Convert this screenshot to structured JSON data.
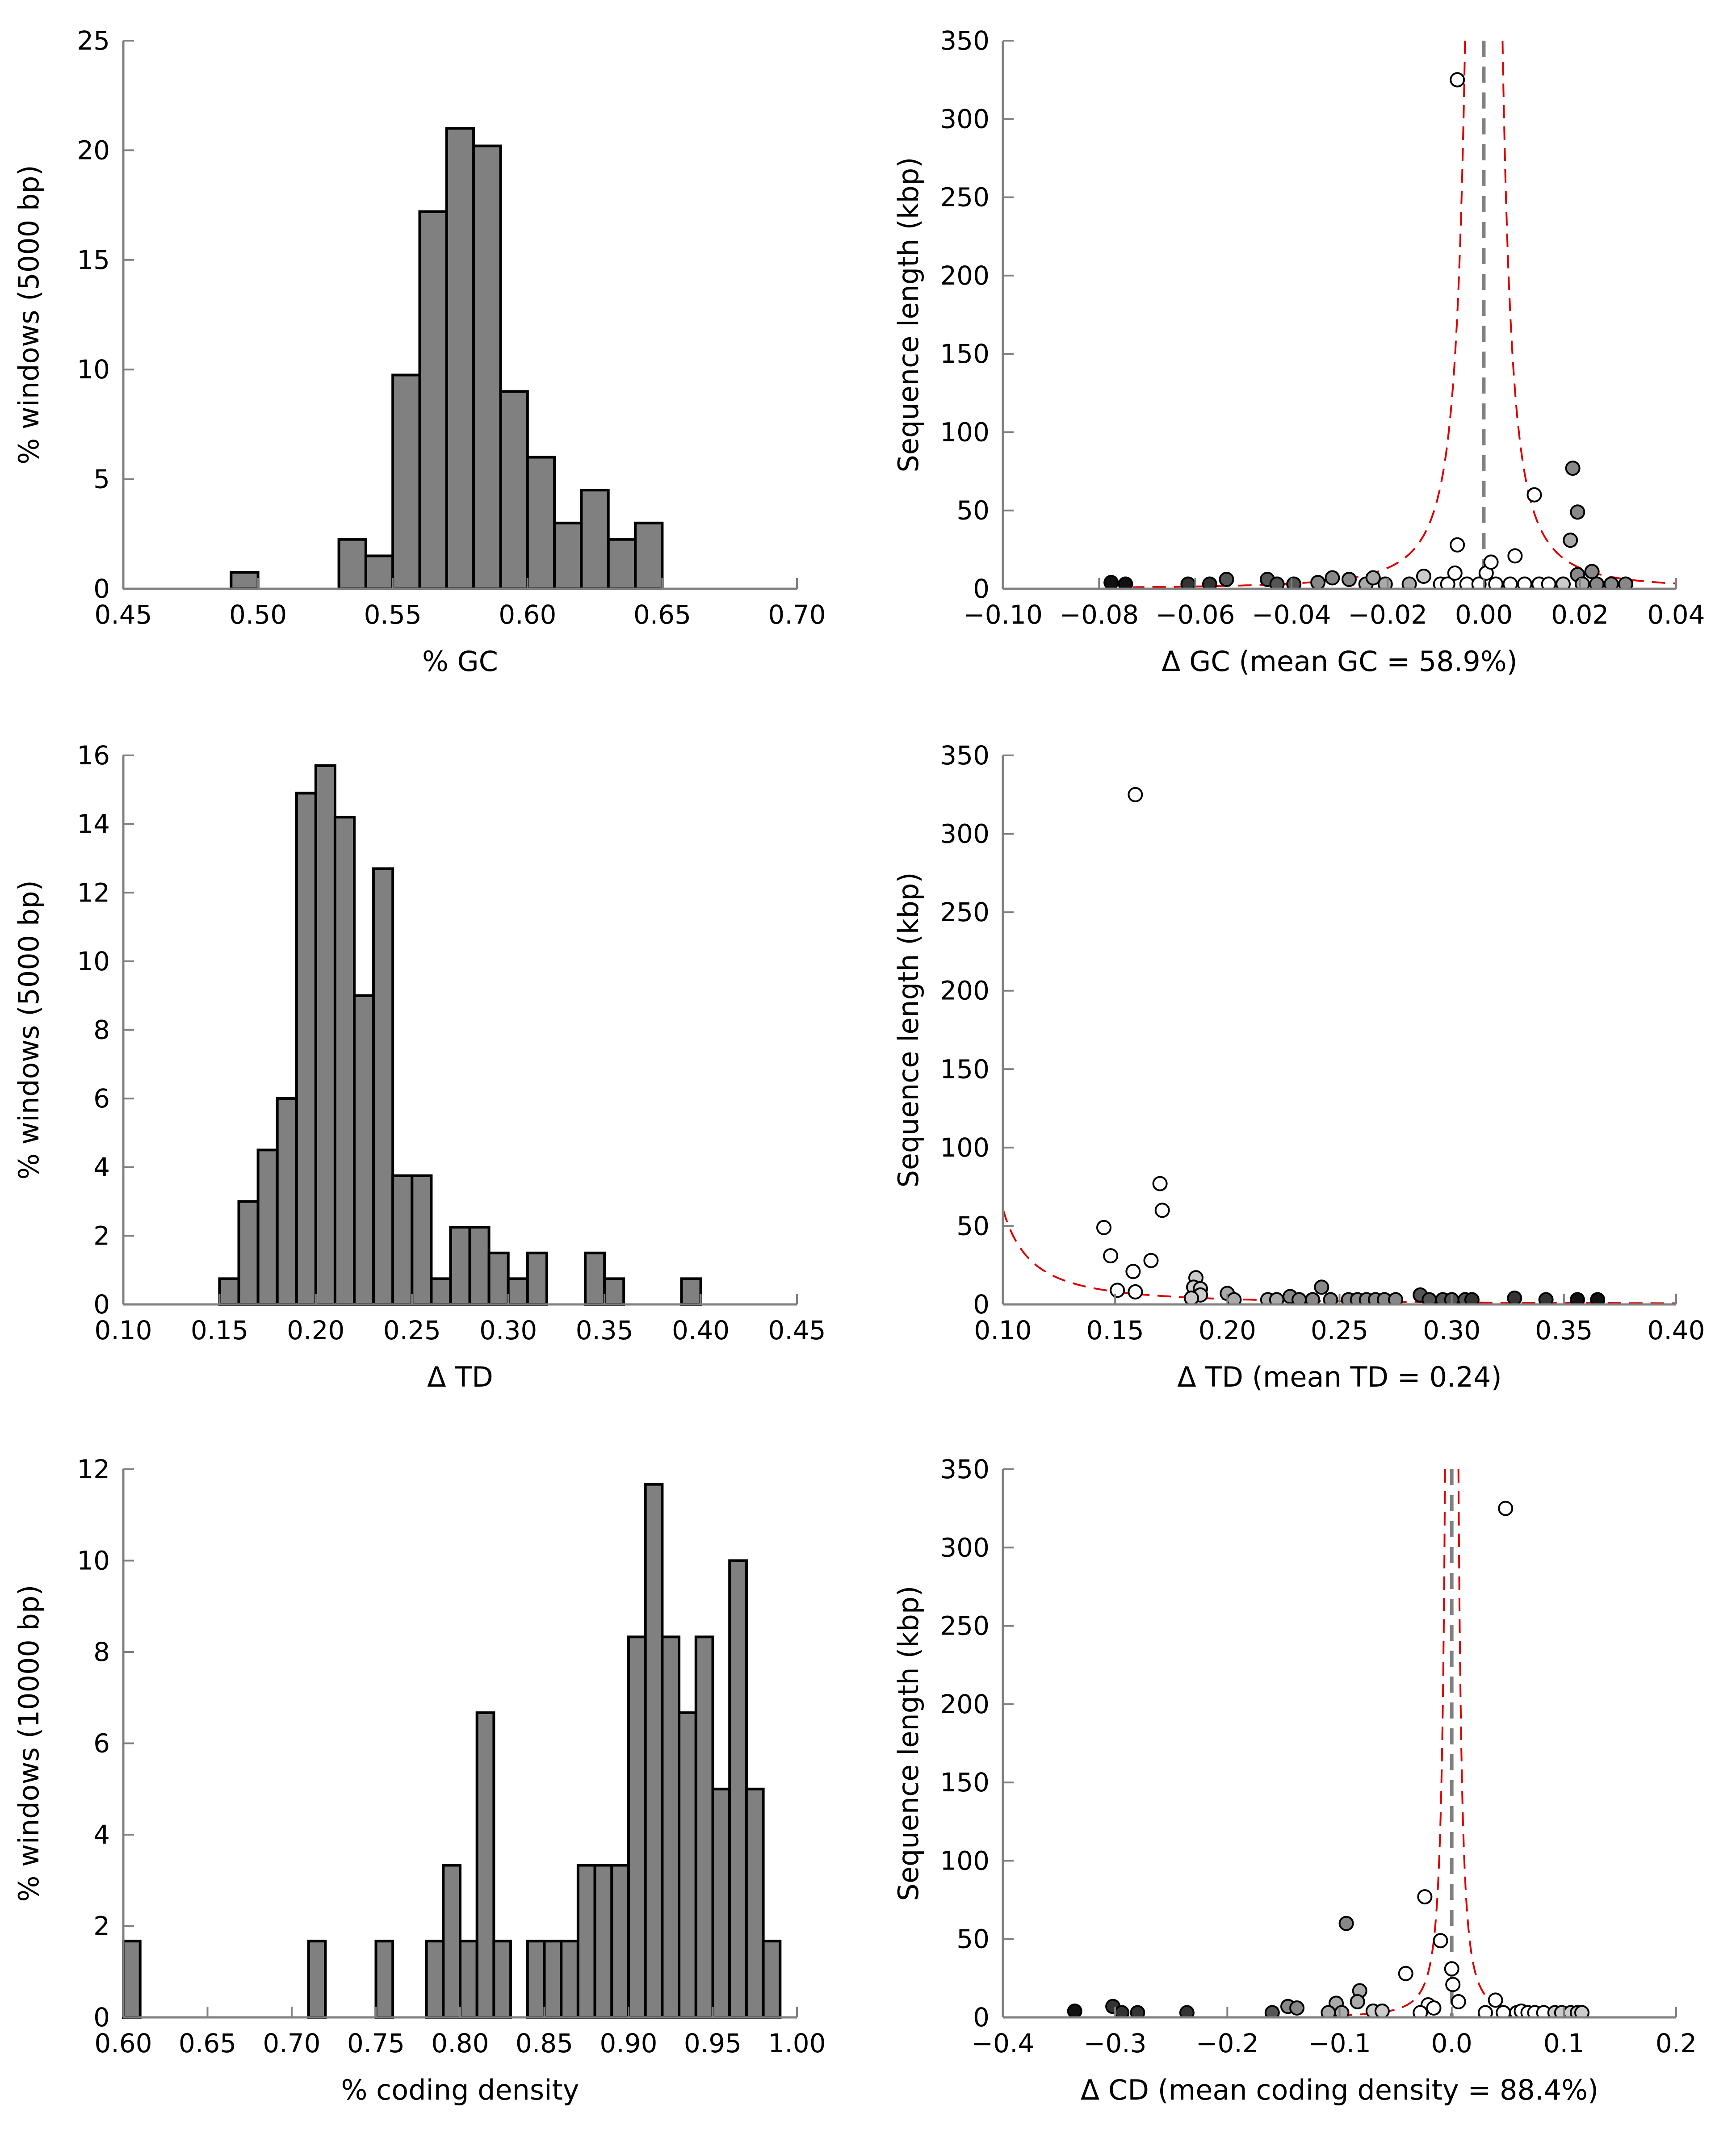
{
  "chart_data": [
    {
      "id": "gc-hist",
      "type": "bar",
      "ylabel": "% windows (5000 bp)",
      "xlabel": "% GC",
      "xlim": [
        0.45,
        0.7
      ],
      "ylim": [
        0,
        25
      ],
      "xticks": [
        0.45,
        0.5,
        0.55,
        0.6,
        0.65,
        0.7
      ],
      "xtick_labels": [
        "0.45",
        "0.50",
        "0.55",
        "0.60",
        "0.65",
        "0.70"
      ],
      "yticks": [
        0,
        5,
        10,
        15,
        20,
        25
      ],
      "ytick_labels": [
        "0",
        "5",
        "10",
        "15",
        "20",
        "25"
      ],
      "bin_width": 0.01,
      "bins": [
        {
          "x": 0.49,
          "value": 0.75
        },
        {
          "x": 0.53,
          "value": 2.25
        },
        {
          "x": 0.54,
          "value": 1.5
        },
        {
          "x": 0.55,
          "value": 9.75
        },
        {
          "x": 0.56,
          "value": 17.2
        },
        {
          "x": 0.57,
          "value": 21.0
        },
        {
          "x": 0.58,
          "value": 20.2
        },
        {
          "x": 0.59,
          "value": 9.0
        },
        {
          "x": 0.6,
          "value": 6.0
        },
        {
          "x": 0.61,
          "value": 3.0
        },
        {
          "x": 0.62,
          "value": 4.5
        },
        {
          "x": 0.63,
          "value": 2.25
        },
        {
          "x": 0.64,
          "value": 3.0
        }
      ],
      "bar_color": "#808080"
    },
    {
      "id": "gc-scatter",
      "type": "scatter",
      "ylabel": "Sequence length (kbp)",
      "xlabel": "Δ GC (mean GC = 58.9%)",
      "xlim": [
        -0.1,
        0.04
      ],
      "ylim": [
        0,
        350
      ],
      "xticks": [
        -0.1,
        -0.08,
        -0.06,
        -0.04,
        -0.02,
        0.0,
        0.02,
        0.04
      ],
      "xtick_labels": [
        "−0.10",
        "−0.08",
        "−0.06",
        "−0.04",
        "−0.02",
        "0.00",
        "0.02",
        "0.04"
      ],
      "yticks": [
        0,
        50,
        100,
        150,
        200,
        250,
        300,
        350
      ],
      "ytick_labels": [
        "0",
        "50",
        "100",
        "150",
        "200",
        "250",
        "300",
        "350"
      ],
      "vline": 0.0,
      "envelope_k": 0.0195,
      "envelope_center": 0.0,
      "points": [
        {
          "x": -0.0055,
          "y": 325,
          "fill": "#ffffff"
        },
        {
          "x": -0.0775,
          "y": 4,
          "fill": "#111111"
        },
        {
          "x": -0.0745,
          "y": 3,
          "fill": "#111111"
        },
        {
          "x": -0.0615,
          "y": 3,
          "fill": "#333333"
        },
        {
          "x": -0.057,
          "y": 3,
          "fill": "#333333"
        },
        {
          "x": -0.0535,
          "y": 6,
          "fill": "#555555"
        },
        {
          "x": -0.045,
          "y": 6,
          "fill": "#555555"
        },
        {
          "x": -0.043,
          "y": 3,
          "fill": "#555555"
        },
        {
          "x": -0.0395,
          "y": 3,
          "fill": "#555555"
        },
        {
          "x": -0.0345,
          "y": 4,
          "fill": "#888888"
        },
        {
          "x": -0.0315,
          "y": 7,
          "fill": "#888888"
        },
        {
          "x": -0.028,
          "y": 6,
          "fill": "#888888"
        },
        {
          "x": -0.0245,
          "y": 3,
          "fill": "#aaaaaa"
        },
        {
          "x": -0.023,
          "y": 7,
          "fill": "#aaaaaa"
        },
        {
          "x": -0.0205,
          "y": 3,
          "fill": "#aaaaaa"
        },
        {
          "x": -0.0155,
          "y": 3,
          "fill": "#aaaaaa"
        },
        {
          "x": -0.0125,
          "y": 8,
          "fill": "#cccccc"
        },
        {
          "x": -0.009,
          "y": 3,
          "fill": "#ffffff"
        },
        {
          "x": -0.0075,
          "y": 3,
          "fill": "#ffffff"
        },
        {
          "x": -0.006,
          "y": 10,
          "fill": "#ffffff"
        },
        {
          "x": -0.0055,
          "y": 28,
          "fill": "#ffffff"
        },
        {
          "x": -0.0035,
          "y": 3,
          "fill": "#ffffff"
        },
        {
          "x": -0.001,
          "y": 3,
          "fill": "#ffffff"
        },
        {
          "x": 0.0005,
          "y": 10,
          "fill": "#ffffff"
        },
        {
          "x": 0.0015,
          "y": 17,
          "fill": "#ffffff"
        },
        {
          "x": 0.0025,
          "y": 3,
          "fill": "#ffffff"
        },
        {
          "x": 0.0055,
          "y": 3,
          "fill": "#ffffff"
        },
        {
          "x": 0.0065,
          "y": 21,
          "fill": "#ffffff"
        },
        {
          "x": 0.0085,
          "y": 3,
          "fill": "#ffffff"
        },
        {
          "x": 0.0105,
          "y": 60,
          "fill": "#ffffff"
        },
        {
          "x": 0.0115,
          "y": 3,
          "fill": "#ffffff"
        },
        {
          "x": 0.0135,
          "y": 3,
          "fill": "#ffffff"
        },
        {
          "x": 0.0165,
          "y": 3,
          "fill": "#cccccc"
        },
        {
          "x": 0.018,
          "y": 31,
          "fill": "#aaaaaa"
        },
        {
          "x": 0.0185,
          "y": 77,
          "fill": "#888888"
        },
        {
          "x": 0.0195,
          "y": 49,
          "fill": "#888888"
        },
        {
          "x": 0.0195,
          "y": 9,
          "fill": "#888888"
        },
        {
          "x": 0.0205,
          "y": 3,
          "fill": "#aaaaaa"
        },
        {
          "x": 0.0225,
          "y": 11,
          "fill": "#888888"
        },
        {
          "x": 0.0235,
          "y": 3,
          "fill": "#888888"
        },
        {
          "x": 0.0265,
          "y": 3,
          "fill": "#888888"
        },
        {
          "x": 0.0295,
          "y": 3,
          "fill": "#888888"
        }
      ]
    },
    {
      "id": "td-hist",
      "type": "bar",
      "ylabel": "% windows (5000 bp)",
      "xlabel": "Δ TD",
      "xlim": [
        0.1,
        0.45
      ],
      "ylim": [
        0,
        16
      ],
      "xticks": [
        0.1,
        0.15,
        0.2,
        0.25,
        0.3,
        0.35,
        0.4,
        0.45
      ],
      "xtick_labels": [
        "0.10",
        "0.15",
        "0.20",
        "0.25",
        "0.30",
        "0.35",
        "0.40",
        "0.45"
      ],
      "yticks": [
        0,
        2,
        4,
        6,
        8,
        10,
        12,
        14,
        16
      ],
      "ytick_labels": [
        "0",
        "2",
        "4",
        "6",
        "8",
        "10",
        "12",
        "14",
        "16"
      ],
      "bin_width": 0.01,
      "bins": [
        {
          "x": 0.15,
          "value": 0.75
        },
        {
          "x": 0.16,
          "value": 3.0
        },
        {
          "x": 0.17,
          "value": 4.5
        },
        {
          "x": 0.18,
          "value": 6.0
        },
        {
          "x": 0.19,
          "value": 14.9
        },
        {
          "x": 0.2,
          "value": 15.7
        },
        {
          "x": 0.21,
          "value": 14.2
        },
        {
          "x": 0.22,
          "value": 9.0
        },
        {
          "x": 0.23,
          "value": 12.7
        },
        {
          "x": 0.24,
          "value": 3.75
        },
        {
          "x": 0.25,
          "value": 3.75
        },
        {
          "x": 0.26,
          "value": 0.75
        },
        {
          "x": 0.27,
          "value": 2.25
        },
        {
          "x": 0.28,
          "value": 2.25
        },
        {
          "x": 0.29,
          "value": 1.5
        },
        {
          "x": 0.3,
          "value": 0.75
        },
        {
          "x": 0.31,
          "value": 1.5
        },
        {
          "x": 0.34,
          "value": 1.5
        },
        {
          "x": 0.35,
          "value": 0.75
        },
        {
          "x": 0.39,
          "value": 0.75
        }
      ],
      "bar_color": "#808080"
    },
    {
      "id": "td-scatter",
      "type": "scatter",
      "ylabel": "Sequence length (kbp)",
      "xlabel": "Δ TD (mean TD = 0.24)",
      "xlim": [
        0.1,
        0.4
      ],
      "ylim": [
        0,
        350
      ],
      "xticks": [
        0.1,
        0.15,
        0.2,
        0.25,
        0.3,
        0.35,
        0.4
      ],
      "xtick_labels": [
        "0.10",
        "0.15",
        "0.20",
        "0.25",
        "0.30",
        "0.35",
        "0.40"
      ],
      "yticks": [
        0,
        50,
        100,
        150,
        200,
        250,
        300,
        350
      ],
      "ytick_labels": [
        "0",
        "50",
        "100",
        "150",
        "200",
        "250",
        "300",
        "350"
      ],
      "vline": null,
      "envelope_k": 2.9,
      "envelope_offset": 0.08,
      "points": [
        {
          "x": 0.159,
          "y": 325,
          "fill": "#ffffff"
        },
        {
          "x": 0.17,
          "y": 77,
          "fill": "#ffffff"
        },
        {
          "x": 0.171,
          "y": 60,
          "fill": "#ffffff"
        },
        {
          "x": 0.145,
          "y": 49,
          "fill": "#ffffff"
        },
        {
          "x": 0.148,
          "y": 31,
          "fill": "#ffffff"
        },
        {
          "x": 0.166,
          "y": 28,
          "fill": "#ffffff"
        },
        {
          "x": 0.158,
          "y": 21,
          "fill": "#ffffff"
        },
        {
          "x": 0.151,
          "y": 9,
          "fill": "#ffffff"
        },
        {
          "x": 0.159,
          "y": 8,
          "fill": "#ffffff"
        },
        {
          "x": 0.186,
          "y": 17,
          "fill": "#cccccc"
        },
        {
          "x": 0.185,
          "y": 11,
          "fill": "#cccccc"
        },
        {
          "x": 0.188,
          "y": 10,
          "fill": "#cccccc"
        },
        {
          "x": 0.188,
          "y": 6,
          "fill": "#cccccc"
        },
        {
          "x": 0.184,
          "y": 4,
          "fill": "#cccccc"
        },
        {
          "x": 0.2,
          "y": 7,
          "fill": "#aaaaaa"
        },
        {
          "x": 0.203,
          "y": 3,
          "fill": "#aaaaaa"
        },
        {
          "x": 0.218,
          "y": 3,
          "fill": "#aaaaaa"
        },
        {
          "x": 0.222,
          "y": 3,
          "fill": "#aaaaaa"
        },
        {
          "x": 0.228,
          "y": 5,
          "fill": "#888888"
        },
        {
          "x": 0.232,
          "y": 3,
          "fill": "#888888"
        },
        {
          "x": 0.238,
          "y": 3,
          "fill": "#888888"
        },
        {
          "x": 0.242,
          "y": 11,
          "fill": "#888888"
        },
        {
          "x": 0.246,
          "y": 3,
          "fill": "#888888"
        },
        {
          "x": 0.254,
          "y": 3,
          "fill": "#888888"
        },
        {
          "x": 0.258,
          "y": 3,
          "fill": "#888888"
        },
        {
          "x": 0.262,
          "y": 3,
          "fill": "#888888"
        },
        {
          "x": 0.266,
          "y": 3,
          "fill": "#888888"
        },
        {
          "x": 0.27,
          "y": 3,
          "fill": "#888888"
        },
        {
          "x": 0.275,
          "y": 3,
          "fill": "#888888"
        },
        {
          "x": 0.286,
          "y": 6,
          "fill": "#555555"
        },
        {
          "x": 0.29,
          "y": 3,
          "fill": "#555555"
        },
        {
          "x": 0.296,
          "y": 3,
          "fill": "#555555"
        },
        {
          "x": 0.3,
          "y": 3,
          "fill": "#555555"
        },
        {
          "x": 0.306,
          "y": 3,
          "fill": "#555555"
        },
        {
          "x": 0.309,
          "y": 3,
          "fill": "#333333"
        },
        {
          "x": 0.328,
          "y": 4,
          "fill": "#333333"
        },
        {
          "x": 0.342,
          "y": 3,
          "fill": "#333333"
        },
        {
          "x": 0.356,
          "y": 3,
          "fill": "#111111"
        },
        {
          "x": 0.365,
          "y": 3,
          "fill": "#111111"
        }
      ]
    },
    {
      "id": "cd-hist",
      "type": "bar",
      "ylabel": "% windows (10000 bp)",
      "xlabel": "% coding density",
      "xlim": [
        0.6,
        1.0
      ],
      "ylim": [
        0,
        12
      ],
      "xticks": [
        0.6,
        0.65,
        0.7,
        0.75,
        0.8,
        0.85,
        0.9,
        0.95,
        1.0
      ],
      "xtick_labels": [
        "0.60",
        "0.65",
        "0.70",
        "0.75",
        "0.80",
        "0.85",
        "0.90",
        "0.95",
        "1.00"
      ],
      "yticks": [
        0,
        2,
        4,
        6,
        8,
        10,
        12
      ],
      "ytick_labels": [
        "0",
        "2",
        "4",
        "6",
        "8",
        "10",
        "12"
      ],
      "bin_width": 0.01,
      "bins": [
        {
          "x": 0.6,
          "value": 1.67
        },
        {
          "x": 0.71,
          "value": 1.67
        },
        {
          "x": 0.75,
          "value": 1.67
        },
        {
          "x": 0.78,
          "value": 1.67
        },
        {
          "x": 0.79,
          "value": 3.33
        },
        {
          "x": 0.8,
          "value": 1.67
        },
        {
          "x": 0.81,
          "value": 6.67
        },
        {
          "x": 0.82,
          "value": 1.67
        },
        {
          "x": 0.84,
          "value": 1.67
        },
        {
          "x": 0.85,
          "value": 1.67
        },
        {
          "x": 0.86,
          "value": 1.67
        },
        {
          "x": 0.87,
          "value": 3.33
        },
        {
          "x": 0.88,
          "value": 3.33
        },
        {
          "x": 0.89,
          "value": 3.33
        },
        {
          "x": 0.9,
          "value": 8.33
        },
        {
          "x": 0.91,
          "value": 11.67
        },
        {
          "x": 0.92,
          "value": 8.33
        },
        {
          "x": 0.93,
          "value": 6.67
        },
        {
          "x": 0.94,
          "value": 8.33
        },
        {
          "x": 0.95,
          "value": 5.0
        },
        {
          "x": 0.96,
          "value": 10.0
        },
        {
          "x": 0.97,
          "value": 5.0
        },
        {
          "x": 0.98,
          "value": 1.67
        }
      ],
      "bar_color": "#808080"
    },
    {
      "id": "cd-scatter",
      "type": "scatter",
      "ylabel": "Sequence length (kbp)",
      "xlabel": "Δ CD (mean coding density = 88.4%)",
      "xlim": [
        -0.4,
        0.2
      ],
      "ylim": [
        0,
        350
      ],
      "xticks": [
        -0.4,
        -0.3,
        -0.2,
        -0.1,
        0.0,
        0.1,
        0.2
      ],
      "xtick_labels": [
        "−0.4",
        "−0.3",
        "−0.2",
        "−0.1",
        "0.0",
        "0.1",
        "0.2"
      ],
      "yticks": [
        0,
        50,
        100,
        150,
        200,
        250,
        300,
        350
      ],
      "ytick_labels": [
        "0",
        "50",
        "100",
        "150",
        "200",
        "250",
        "300",
        "350"
      ],
      "vline": 0.0,
      "envelope_k": 0.03,
      "envelope_center": 0.0,
      "points": [
        {
          "x": 0.048,
          "y": 325,
          "fill": "#ffffff"
        },
        {
          "x": -0.024,
          "y": 77,
          "fill": "#ffffff"
        },
        {
          "x": -0.094,
          "y": 60,
          "fill": "#888888"
        },
        {
          "x": -0.01,
          "y": 49,
          "fill": "#ffffff"
        },
        {
          "x": 0.0,
          "y": 31,
          "fill": "#ffffff"
        },
        {
          "x": -0.041,
          "y": 28,
          "fill": "#ffffff"
        },
        {
          "x": 0.001,
          "y": 21,
          "fill": "#ffffff"
        },
        {
          "x": -0.082,
          "y": 17,
          "fill": "#aaaaaa"
        },
        {
          "x": 0.039,
          "y": 11,
          "fill": "#ffffff"
        },
        {
          "x": -0.084,
          "y": 10,
          "fill": "#aaaaaa"
        },
        {
          "x": 0.006,
          "y": 10,
          "fill": "#ffffff"
        },
        {
          "x": -0.021,
          "y": 8,
          "fill": "#ffffff"
        },
        {
          "x": -0.103,
          "y": 9,
          "fill": "#aaaaaa"
        },
        {
          "x": -0.336,
          "y": 4,
          "fill": "#111111"
        },
        {
          "x": -0.302,
          "y": 7,
          "fill": "#333333"
        },
        {
          "x": -0.294,
          "y": 3,
          "fill": "#333333"
        },
        {
          "x": -0.28,
          "y": 3,
          "fill": "#333333"
        },
        {
          "x": -0.236,
          "y": 3,
          "fill": "#333333"
        },
        {
          "x": -0.16,
          "y": 3,
          "fill": "#555555"
        },
        {
          "x": -0.146,
          "y": 7,
          "fill": "#888888"
        },
        {
          "x": -0.138,
          "y": 6,
          "fill": "#888888"
        },
        {
          "x": -0.11,
          "y": 3,
          "fill": "#aaaaaa"
        },
        {
          "x": -0.098,
          "y": 3,
          "fill": "#aaaaaa"
        },
        {
          "x": -0.07,
          "y": 4,
          "fill": "#cccccc"
        },
        {
          "x": -0.062,
          "y": 4,
          "fill": "#cccccc"
        },
        {
          "x": -0.028,
          "y": 3,
          "fill": "#ffffff"
        },
        {
          "x": -0.016,
          "y": 6,
          "fill": "#ffffff"
        },
        {
          "x": 0.03,
          "y": 3,
          "fill": "#ffffff"
        },
        {
          "x": 0.046,
          "y": 3,
          "fill": "#ffffff"
        },
        {
          "x": 0.058,
          "y": 3,
          "fill": "#ffffff"
        },
        {
          "x": 0.062,
          "y": 4,
          "fill": "#ffffff"
        },
        {
          "x": 0.068,
          "y": 3,
          "fill": "#ffffff"
        },
        {
          "x": 0.074,
          "y": 3,
          "fill": "#ffffff"
        },
        {
          "x": 0.082,
          "y": 3,
          "fill": "#ffffff"
        },
        {
          "x": 0.092,
          "y": 3,
          "fill": "#cccccc"
        },
        {
          "x": 0.098,
          "y": 3,
          "fill": "#cccccc"
        },
        {
          "x": 0.106,
          "y": 3,
          "fill": "#cccccc"
        },
        {
          "x": 0.112,
          "y": 3,
          "fill": "#cccccc"
        },
        {
          "x": 0.116,
          "y": 3,
          "fill": "#cccccc"
        }
      ]
    }
  ]
}
